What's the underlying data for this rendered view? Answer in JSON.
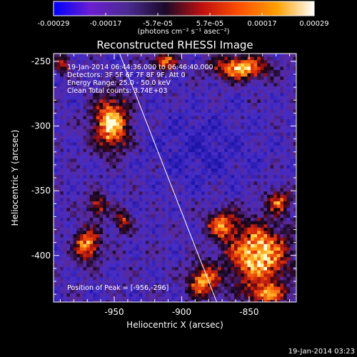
{
  "chart_data": {
    "type": "heatmap",
    "title": "Reconstructed RHESSI Image",
    "colorbar": {
      "ticks": [
        "-0.00029",
        "-0.00017",
        "-5.7e-05",
        "5.7e-05",
        "0.00017",
        "0.00029"
      ],
      "label": "(photons cm⁻² s⁻¹ asec⁻²)",
      "colors": [
        "#0000ff",
        "#6b1fd0",
        "#4a2a90",
        "#1a0a28",
        "#c01010",
        "#ff5000",
        "#ffa000",
        "#ffffff"
      ]
    },
    "xlabel": "Heliocentric X (arcsec)",
    "ylabel": "Heliocentric Y (arcsec)",
    "xlim": [
      -995,
      -815
    ],
    "ylim": [
      -436,
      -244
    ],
    "xticks": [
      -950,
      -900,
      -850
    ],
    "yticks": [
      -250,
      -300,
      -350,
      -400
    ],
    "annotations": {
      "time": "19-Jan-2014 06:44:36.000 to 06:46:40.000",
      "detectors": "Detectors: 3F 5F 6F 7F 8F 9F, Att 0",
      "energy": "Energy Range: 25.0 - 50.0 keV",
      "method": "Clean    Total counts: 3.74E+03",
      "peak": "Position of Peak = [-956,-296]"
    },
    "peak": [
      -956,
      -296
    ],
    "limb_line": [
      [
        -946,
        -244
      ],
      [
        -874,
        -436
      ]
    ],
    "blobs": [
      {
        "x": -952,
        "y": -298,
        "rx": 14,
        "ry": 22,
        "amp": 1.0
      },
      {
        "x": -913,
        "y": -250,
        "rx": 10,
        "ry": 7,
        "amp": 0.75
      },
      {
        "x": -856,
        "y": -255,
        "rx": 22,
        "ry": 10,
        "amp": 0.9
      },
      {
        "x": -988,
        "y": -252,
        "rx": 6,
        "ry": 8,
        "amp": 0.55
      },
      {
        "x": -962,
        "y": -362,
        "rx": 8,
        "ry": 10,
        "amp": 0.55
      },
      {
        "x": -970,
        "y": -392,
        "rx": 10,
        "ry": 14,
        "amp": 0.8
      },
      {
        "x": -944,
        "y": -374,
        "rx": 7,
        "ry": 10,
        "amp": 0.5
      },
      {
        "x": -843,
        "y": -400,
        "rx": 24,
        "ry": 26,
        "amp": 1.0
      },
      {
        "x": -870,
        "y": -376,
        "rx": 12,
        "ry": 12,
        "amp": 0.7
      },
      {
        "x": -884,
        "y": -420,
        "rx": 12,
        "ry": 14,
        "amp": 0.8
      },
      {
        "x": -836,
        "y": -430,
        "rx": 16,
        "ry": 8,
        "amp": 0.65
      },
      {
        "x": -828,
        "y": -358,
        "rx": 10,
        "ry": 10,
        "amp": 0.6
      }
    ],
    "grid": false
  },
  "footer": {
    "timestamp": "19-Jan-2014 03:23"
  }
}
